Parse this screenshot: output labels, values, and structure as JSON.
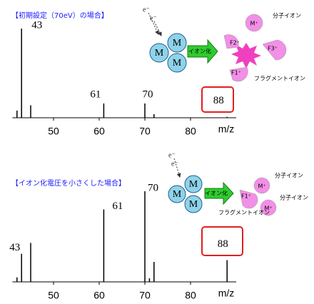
{
  "chart_data": [
    {
      "type": "bar",
      "title": "【初期設定（70eV）の場合】",
      "xlabel": "m/z",
      "x": [
        42,
        43,
        45,
        61,
        70,
        72,
        88
      ],
      "values": [
        8,
        100,
        14,
        16,
        16,
        4,
        1
      ],
      "color": "#000000",
      "xlim": [
        41,
        90
      ],
      "xticks": [
        50,
        60,
        70,
        80
      ],
      "ylim": [
        0,
        100
      ],
      "labeled_peaks": [
        43,
        61,
        70,
        88
      ],
      "highlight_color": "#e02020",
      "annotations": {
        "electron": "e⁻",
        "molecule": "M",
        "ionization": "イオン化",
        "molecular_ion": "M⁺",
        "molecular_ion_label": "分子イオン",
        "fragments": [
          "F1⁺",
          "F2⁺",
          "F3⁺"
        ],
        "fragment_label": "フラグメントイオン"
      }
    },
    {
      "type": "bar",
      "title": "【イオン化電圧を小さくした場合】",
      "xlabel": "m/z",
      "x": [
        42,
        43,
        45,
        61,
        70,
        71,
        72,
        88
      ],
      "values": [
        5,
        31,
        43,
        80,
        100,
        4,
        22,
        24
      ],
      "color": "#000000",
      "xlim": [
        41,
        90
      ],
      "xticks": [
        50,
        60,
        70,
        80
      ],
      "ylim": [
        0,
        100
      ],
      "labeled_peaks": [
        43,
        61,
        70,
        88
      ],
      "highlight_color": "#e02020",
      "annotations": {
        "electron": "e⁻",
        "molecule": "M",
        "ionization": "イオン化",
        "molecular_ion": "M⁺",
        "molecular_ion_label": "分子イオン",
        "fragments": [
          "F1⁺"
        ],
        "fragment_label": "フラグメントイオン"
      }
    }
  ]
}
